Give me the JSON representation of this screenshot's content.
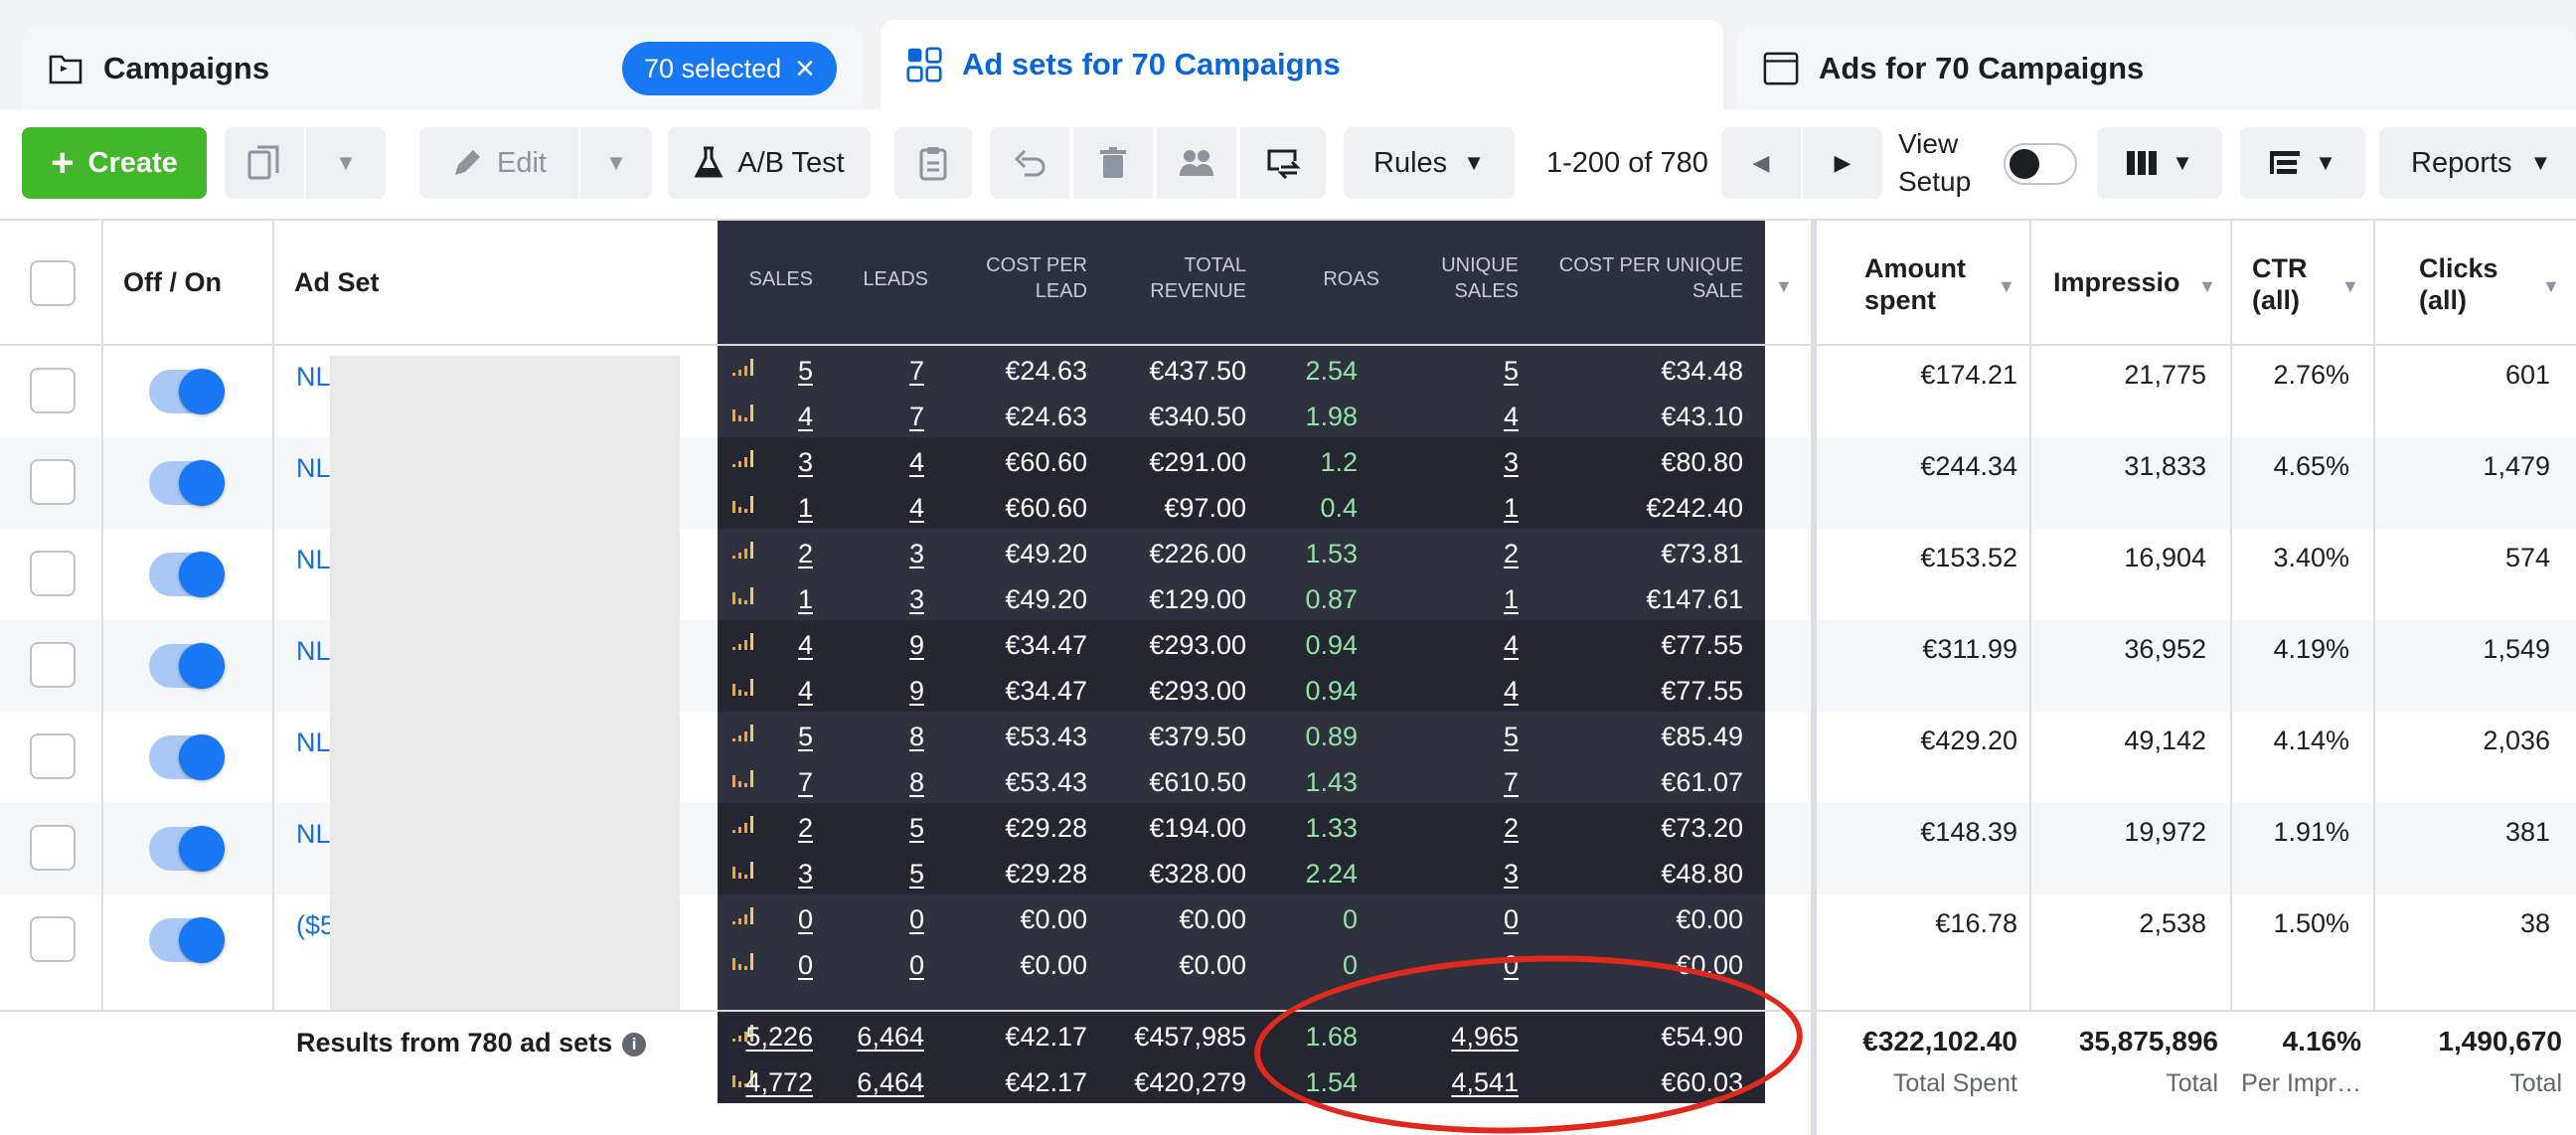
{
  "tabs": [
    {
      "label": "Campaigns",
      "selection": "70 selected"
    },
    {
      "label": "Ad sets for 70 Campaigns"
    },
    {
      "label": "Ads for 70 Campaigns"
    }
  ],
  "toolbar": {
    "create": "Create",
    "edit": "Edit",
    "ab_test": "A/B Test",
    "rules": "Rules",
    "pager": "1-200 of 780",
    "view_setup": "View Setup",
    "reports": "Reports"
  },
  "columns": {
    "off_on": "Off / On",
    "ad_set": "Ad Set",
    "sales": "SALES",
    "leads": "LEADS",
    "cpl": "COST PER LEAD",
    "revenue": "TOTAL REVENUE",
    "roas": "ROAS",
    "unique_sales": "UNIQUE SALES",
    "cpus": "COST PER UNIQUE SALE",
    "amount_spent": "Amount spent",
    "impressions": "Impressio",
    "ctr": "CTR (all)",
    "clicks": "Clicks (all)"
  },
  "rows": [
    {
      "name": "NL",
      "spent": "€174.21",
      "impr": "21,775",
      "ctr": "2.76%",
      "clicks": "601",
      "a": {
        "sales": "5",
        "leads": "7",
        "cpl": "€24.63",
        "rev": "€437.50",
        "roas": "2.54",
        "us": "5",
        "cpus": "€34.48"
      },
      "b": {
        "sales": "4",
        "leads": "7",
        "cpl": "€24.63",
        "rev": "€340.50",
        "roas": "1.98",
        "us": "4",
        "cpus": "€43.10"
      }
    },
    {
      "name": "NL",
      "spent": "€244.34",
      "impr": "31,833",
      "ctr": "4.65%",
      "clicks": "1,479",
      "a": {
        "sales": "3",
        "leads": "4",
        "cpl": "€60.60",
        "rev": "€291.00",
        "roas": "1.2",
        "us": "3",
        "cpus": "€80.80"
      },
      "b": {
        "sales": "1",
        "leads": "4",
        "cpl": "€60.60",
        "rev": "€97.00",
        "roas": "0.4",
        "us": "1",
        "cpus": "€242.40"
      }
    },
    {
      "name": "NL",
      "spent": "€153.52",
      "impr": "16,904",
      "ctr": "3.40%",
      "clicks": "574",
      "a": {
        "sales": "2",
        "leads": "3",
        "cpl": "€49.20",
        "rev": "€226.00",
        "roas": "1.53",
        "us": "2",
        "cpus": "€73.81"
      },
      "b": {
        "sales": "1",
        "leads": "3",
        "cpl": "€49.20",
        "rev": "€129.00",
        "roas": "0.87",
        "us": "1",
        "cpus": "€147.61"
      }
    },
    {
      "name": "NL",
      "spent": "€311.99",
      "impr": "36,952",
      "ctr": "4.19%",
      "clicks": "1,549",
      "a": {
        "sales": "4",
        "leads": "9",
        "cpl": "€34.47",
        "rev": "€293.00",
        "roas": "0.94",
        "us": "4",
        "cpus": "€77.55"
      },
      "b": {
        "sales": "4",
        "leads": "9",
        "cpl": "€34.47",
        "rev": "€293.00",
        "roas": "0.94",
        "us": "4",
        "cpus": "€77.55"
      }
    },
    {
      "name": "NL",
      "spent": "€429.20",
      "impr": "49,142",
      "ctr": "4.14%",
      "clicks": "2,036",
      "a": {
        "sales": "5",
        "leads": "8",
        "cpl": "€53.43",
        "rev": "€379.50",
        "roas": "0.89",
        "us": "5",
        "cpus": "€85.49"
      },
      "b": {
        "sales": "7",
        "leads": "8",
        "cpl": "€53.43",
        "rev": "€610.50",
        "roas": "1.43",
        "us": "7",
        "cpus": "€61.07"
      }
    },
    {
      "name": "NL",
      "spent": "€148.39",
      "impr": "19,972",
      "ctr": "1.91%",
      "clicks": "381",
      "a": {
        "sales": "2",
        "leads": "5",
        "cpl": "€29.28",
        "rev": "€194.00",
        "roas": "1.33",
        "us": "2",
        "cpus": "€73.20"
      },
      "b": {
        "sales": "3",
        "leads": "5",
        "cpl": "€29.28",
        "rev": "€328.00",
        "roas": "2.24",
        "us": "3",
        "cpus": "€48.80"
      }
    },
    {
      "name": "($5",
      "spent": "€16.78",
      "impr": "2,538",
      "ctr": "1.50%",
      "clicks": "38",
      "a": {
        "sales": "0",
        "leads": "0",
        "cpl": "€0.00",
        "rev": "€0.00",
        "roas": "0",
        "us": "0",
        "cpus": "€0.00"
      },
      "b": {
        "sales": "0",
        "leads": "0",
        "cpl": "€0.00",
        "rev": "€0.00",
        "roas": "0",
        "us": "0",
        "cpus": "€0.00"
      }
    }
  ],
  "totals": {
    "label": "Results from 780 ad sets",
    "a": {
      "sales": "5,226",
      "leads": "6,464",
      "cpl": "€42.17",
      "rev": "€457,985",
      "roas": "1.68",
      "us": "4,965",
      "cpus": "€54.90"
    },
    "b": {
      "sales": "4,772",
      "leads": "6,464",
      "cpl": "€42.17",
      "rev": "€420,279",
      "roas": "1.54",
      "us": "4,541",
      "cpus": "€60.03"
    },
    "spent": "€322,102.40",
    "spent_sub": "Total Spent",
    "impr": "35,875,896",
    "impr_sub": "Total",
    "ctr": "4.16%",
    "ctr_sub": "Per Impr…",
    "clicks": "1,490,670",
    "clicks_sub": "Total"
  },
  "colors": {
    "accent": "#1877f2",
    "create": "#42b72a",
    "roas_green": "#8fe3a4",
    "annotation": "#e0291c"
  }
}
